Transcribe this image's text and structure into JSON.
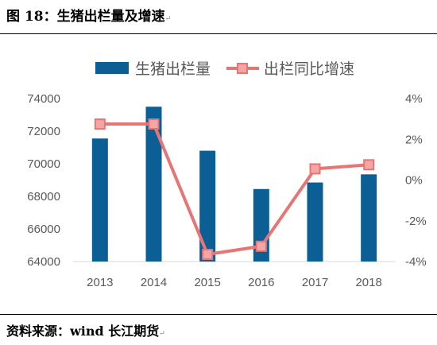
{
  "figure": {
    "title": "图 18：生猪出栏量及增速",
    "return_mark": "↵",
    "source": "资料来源：wind   长江期货"
  },
  "colors": {
    "bar": "#0B5F95",
    "line": "#E87575",
    "marker_fill": "#F4A6A6",
    "marker_stroke": "#E87575",
    "axis": "#D9D9D9",
    "text": "#595959"
  },
  "chart_data": {
    "type": "bar",
    "categories": [
      "2013",
      "2014",
      "2015",
      "2016",
      "2017",
      "2018"
    ],
    "series": [
      {
        "name": "生猪出栏量",
        "type": "bar",
        "axis": "left",
        "values": [
          71550,
          73500,
          70800,
          68450,
          68850,
          69350
        ]
      },
      {
        "name": "出栏同比增速",
        "type": "line",
        "axis": "right",
        "values": [
          2.75,
          2.75,
          -3.65,
          -3.25,
          0.55,
          0.75
        ]
      }
    ],
    "y_left": {
      "min": 64000,
      "max": 74000,
      "ticks": [
        "64000",
        "66000",
        "68000",
        "70000",
        "72000",
        "74000"
      ]
    },
    "y_right": {
      "min": -4,
      "max": 4,
      "ticks": [
        "-4%",
        "-2%",
        "0%",
        "2%",
        "4%"
      ]
    },
    "legend_position": "top-center",
    "grid": false
  }
}
